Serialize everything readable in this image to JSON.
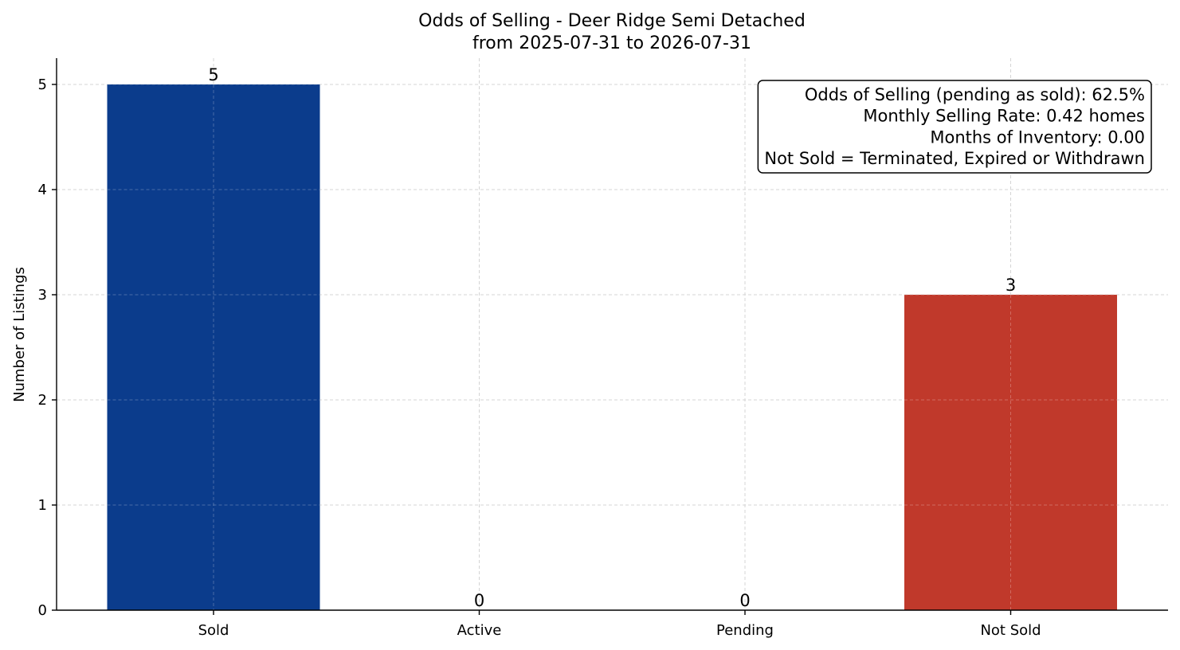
{
  "chart_data": {
    "type": "bar",
    "title": "Odds of Selling - Deer Ridge Semi Detached",
    "subtitle": "from 2025-07-31 to 2026-07-31",
    "xlabel": "",
    "ylabel": "Number of Listings",
    "categories": [
      "Sold",
      "Active",
      "Pending",
      "Not Sold"
    ],
    "values": [
      5,
      0,
      0,
      3
    ],
    "colors": [
      "#0b3c8c",
      "#0b3c8c",
      "#0b3c8c",
      "#c0392b"
    ],
    "ylim": [
      0,
      5.25
    ],
    "yticks": [
      0,
      1,
      2,
      3,
      4,
      5
    ],
    "grid": true,
    "info_box_position": "top-right",
    "info_lines": [
      "Odds of Selling (pending as sold): 62.5%",
      "Monthly Selling Rate: 0.42 homes",
      "Months of Inventory: 0.00",
      "Not Sold = Terminated, Expired or Withdrawn"
    ]
  }
}
